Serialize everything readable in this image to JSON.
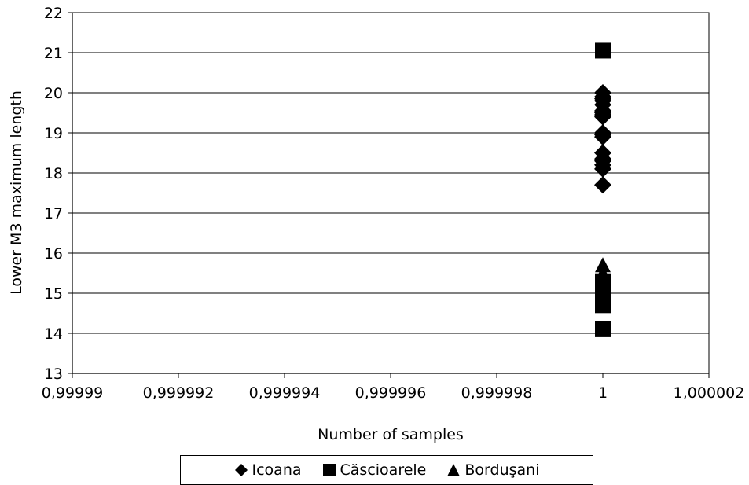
{
  "chart_data": {
    "type": "scatter",
    "title": "",
    "xlabel": "Number of samples",
    "ylabel": "Lower M3 maximum length",
    "xlim": [
      0.99999,
      1.000002
    ],
    "ylim": [
      13,
      22
    ],
    "xticks": [
      0.99999,
      0.999992,
      0.999994,
      0.999996,
      0.999998,
      1,
      1.000002
    ],
    "xtick_labels": [
      "0,99999",
      "0,999992",
      "0,999994",
      "0,999996",
      "0,999998",
      "1",
      "1,000002"
    ],
    "yticks": [
      13,
      14,
      15,
      16,
      17,
      18,
      19,
      20,
      21,
      22
    ],
    "ytick_labels": [
      "13",
      "14",
      "15",
      "16",
      "17",
      "18",
      "19",
      "20",
      "21",
      "22"
    ],
    "grid": "horizontal",
    "legend": "bottom",
    "series": [
      {
        "name": "Icoana",
        "marker": "diamond",
        "color": "#000000",
        "x": [
          1,
          1,
          1,
          1,
          1,
          1,
          1,
          1,
          1,
          1,
          1,
          1,
          1,
          1,
          1,
          1,
          1,
          1
        ],
        "y": [
          17.7,
          18.1,
          18.2,
          18.3,
          18.35,
          18.5,
          18.9,
          18.95,
          19.0,
          19.4,
          19.45,
          19.5,
          19.55,
          19.7,
          19.8,
          19.85,
          19.9,
          20.0
        ]
      },
      {
        "name": "Căscioarele",
        "marker": "square",
        "color": "#000000",
        "x": [
          1,
          1,
          1,
          1,
          1,
          1,
          1,
          1,
          1,
          1
        ],
        "y": [
          14.1,
          14.7,
          14.8,
          14.9,
          15.0,
          15.05,
          15.1,
          15.2,
          15.3,
          21.05
        ]
      },
      {
        "name": "Borduşani",
        "marker": "triangle",
        "color": "#000000",
        "x": [
          1,
          1,
          1,
          1,
          1
        ],
        "y": [
          14.9,
          15.1,
          15.3,
          15.5,
          15.7
        ]
      }
    ]
  }
}
